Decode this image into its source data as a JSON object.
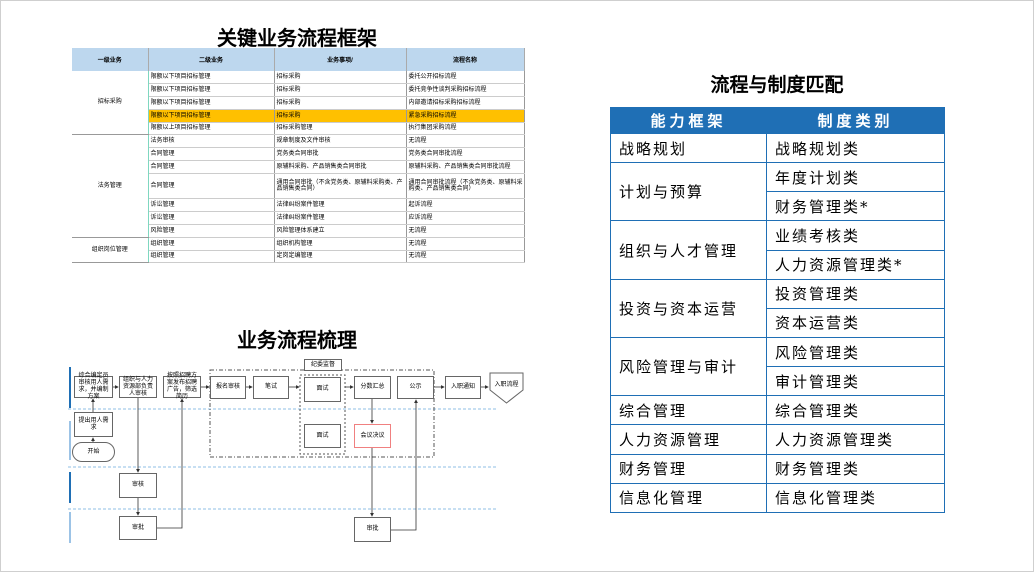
{
  "titles": {
    "key_process": "关键业务流程框架",
    "process_review": "业务流程梳理",
    "process_policy_match": "流程与制度匹配"
  },
  "key_table": {
    "headers": [
      "一级业务",
      "二级业务",
      "业务事项/",
      "流程名称"
    ],
    "groups": [
      {
        "level1": "招标采购",
        "rows": [
          [
            "限额以下项目招标管理",
            "招标采购",
            "委托公开招标流程"
          ],
          [
            "限额以下项目招标管理",
            "招标采购",
            "委托竞争性谈判采购招标流程"
          ],
          [
            "限额以下项目招标管理",
            "招标采购",
            "内部邀请招标采购招标流程"
          ],
          [
            "限额以下项目招标管理",
            "招标采购",
            "紧急采购招标流程"
          ],
          [
            "限额以上项目招标管理",
            "招标采购管理",
            "执行集团采购流程"
          ]
        ]
      },
      {
        "level1": "法务管理",
        "rows": [
          [
            "法务审核",
            "规章制度及文件审核",
            "无流程"
          ],
          [
            "合同管理",
            "党务类合同审批",
            "党务类合同审批流程"
          ],
          [
            "合同管理",
            "原辅料采购、产品销售类合同审批",
            "原辅料采购、产品销售类合同审批流程"
          ],
          [
            "合同管理",
            "通用合同审批（不含党务类、原辅料采购类、产品销售类合同）",
            "通用合同审批流程（不含党务类、原辅料采购类、产品销售类合同）"
          ],
          [
            "诉讼管理",
            "法律纠纷案件管理",
            "起诉流程"
          ],
          [
            "诉讼管理",
            "法律纠纷案件管理",
            "应诉流程"
          ],
          [
            "风险管理",
            "风险管理体系建立",
            "无流程"
          ]
        ]
      },
      {
        "level1": "组织岗位管理",
        "rows": [
          [
            "组织管理",
            "组织机构管理",
            "无流程"
          ],
          [
            "组织管理",
            "定岗定编管理",
            "无流程"
          ]
        ]
      }
    ],
    "highlight_color": "#ffc000"
  },
  "flow": {
    "supervision": "纪委监督",
    "nodes": {
      "n1": "综合编定员审核用人需求，并编制方案",
      "n2": "组织与人力资源部负责人审核",
      "n3": "按照招聘方案发布招聘广告，筛选简历",
      "signup": "报名审核",
      "written": "笔试",
      "interview1": "面试",
      "interview2": "面试",
      "score": "分数汇总",
      "meeting": "会议决议",
      "publicity": "公示",
      "notice": "入职通知",
      "onboard": "入职流程",
      "request": "提出用人需求",
      "start": "开始",
      "review": "审核",
      "approve1": "审批",
      "approve2": "审批"
    }
  },
  "match_table": {
    "headers": [
      "能力框架",
      "制度类别"
    ],
    "rows": [
      {
        "framework": "战略规划",
        "categories": [
          "战略规划类"
        ]
      },
      {
        "framework": "计划与预算",
        "categories": [
          "年度计划类",
          "财务管理类*"
        ]
      },
      {
        "framework": "组织与人才管理",
        "categories": [
          "业绩考核类",
          "人力资源管理类*"
        ]
      },
      {
        "framework": "投资与资本运营",
        "categories": [
          "投资管理类",
          "资本运营类"
        ]
      },
      {
        "framework": "风险管理与审计",
        "categories": [
          "风险管理类",
          "审计管理类"
        ]
      },
      {
        "framework": "综合管理",
        "categories": [
          "综合管理类"
        ]
      },
      {
        "framework": "人力资源管理",
        "categories": [
          "人力资源管理类"
        ]
      },
      {
        "framework": "财务管理",
        "categories": [
          "财务管理类"
        ]
      },
      {
        "framework": "信息化管理",
        "categories": [
          "信息化管理类"
        ]
      }
    ],
    "header_color": "#1f6fb5"
  }
}
